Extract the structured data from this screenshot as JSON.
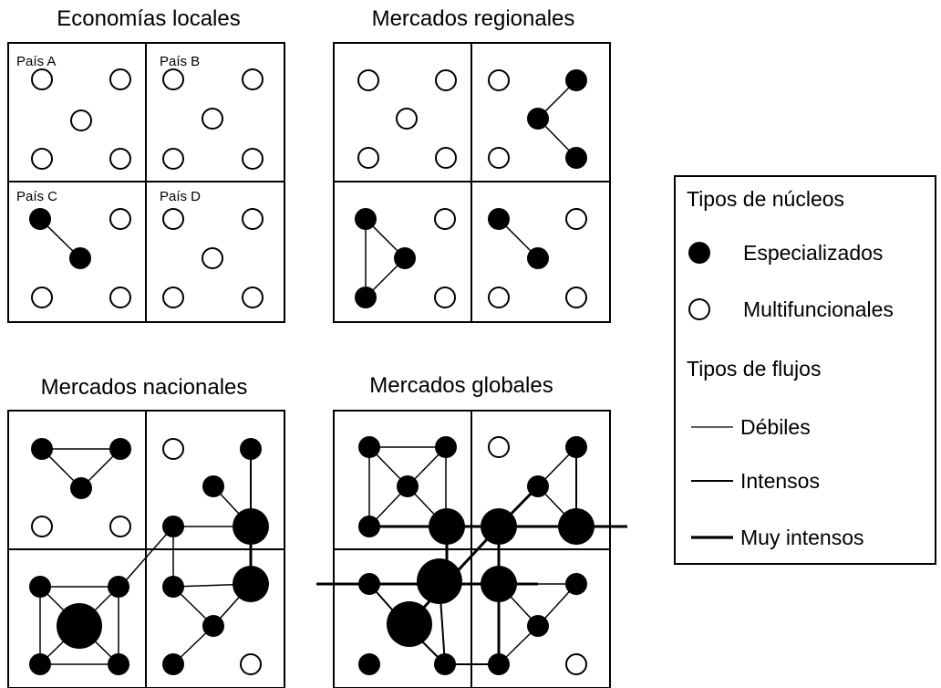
{
  "panels": [
    {
      "title": "Economías locales",
      "countries": [
        "País A",
        "País B",
        "País C",
        "País D"
      ]
    },
    {
      "title": "Mercados regionales"
    },
    {
      "title": "Mercados nacionales"
    },
    {
      "title": "Mercados globales"
    }
  ],
  "legend": {
    "nodes_heading": "Tipos de núcleos",
    "specialized": "Especializados",
    "multifunctional": "Multifuncionales",
    "flows_heading": "Tipos de flujos",
    "weak": "Débiles",
    "intense": "Intensos",
    "very_intense": "Muy intensos"
  },
  "colors": {
    "ink": "#000000",
    "paper": "#ffffff"
  }
}
